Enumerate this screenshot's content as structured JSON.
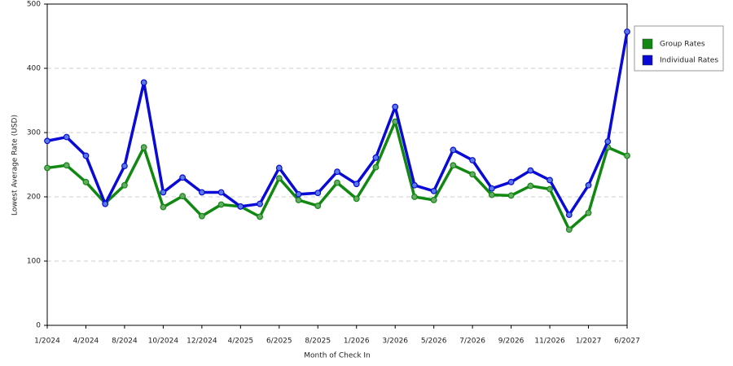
{
  "chart_data": {
    "type": "line",
    "x_label": "Month of Check In",
    "y_label": "Lowest Average Rate (USD)",
    "categories": [
      "1/2024",
      null,
      "4/2024",
      null,
      "8/2024",
      null,
      "10/2024",
      null,
      "12/2024",
      null,
      "4/2025",
      null,
      "6/2025",
      null,
      "8/2025",
      null,
      "1/2026",
      null,
      "3/2026",
      null,
      "5/2026",
      null,
      "7/2026",
      null,
      "9/2026",
      null,
      "11/2026",
      null,
      "1/2027",
      null,
      "6/2027"
    ],
    "series": [
      {
        "name": "Group Rates",
        "color": "#118811",
        "marker": "#66aa66",
        "values": [
          245,
          249,
          223,
          190,
          218,
          277,
          184,
          201,
          170,
          188,
          185,
          169,
          229,
          195,
          186,
          222,
          197,
          246,
          317,
          200,
          195,
          249,
          235,
          203,
          202,
          217,
          212,
          149,
          175,
          277,
          264
        ]
      },
      {
        "name": "Individual Rates",
        "color": "#0a0ad6",
        "marker": "#5a7ae8",
        "values": [
          287,
          293,
          264,
          189,
          248,
          378,
          207,
          230,
          207,
          207,
          185,
          189,
          245,
          204,
          206,
          239,
          220,
          261,
          340,
          218,
          209,
          273,
          257,
          213,
          223,
          241,
          226,
          172,
          218,
          286,
          457
        ]
      }
    ],
    "ylim": [
      0,
      500
    ],
    "yticks": [
      0,
      100,
      200,
      300,
      400,
      500
    ],
    "grid": true,
    "legend": "right"
  }
}
